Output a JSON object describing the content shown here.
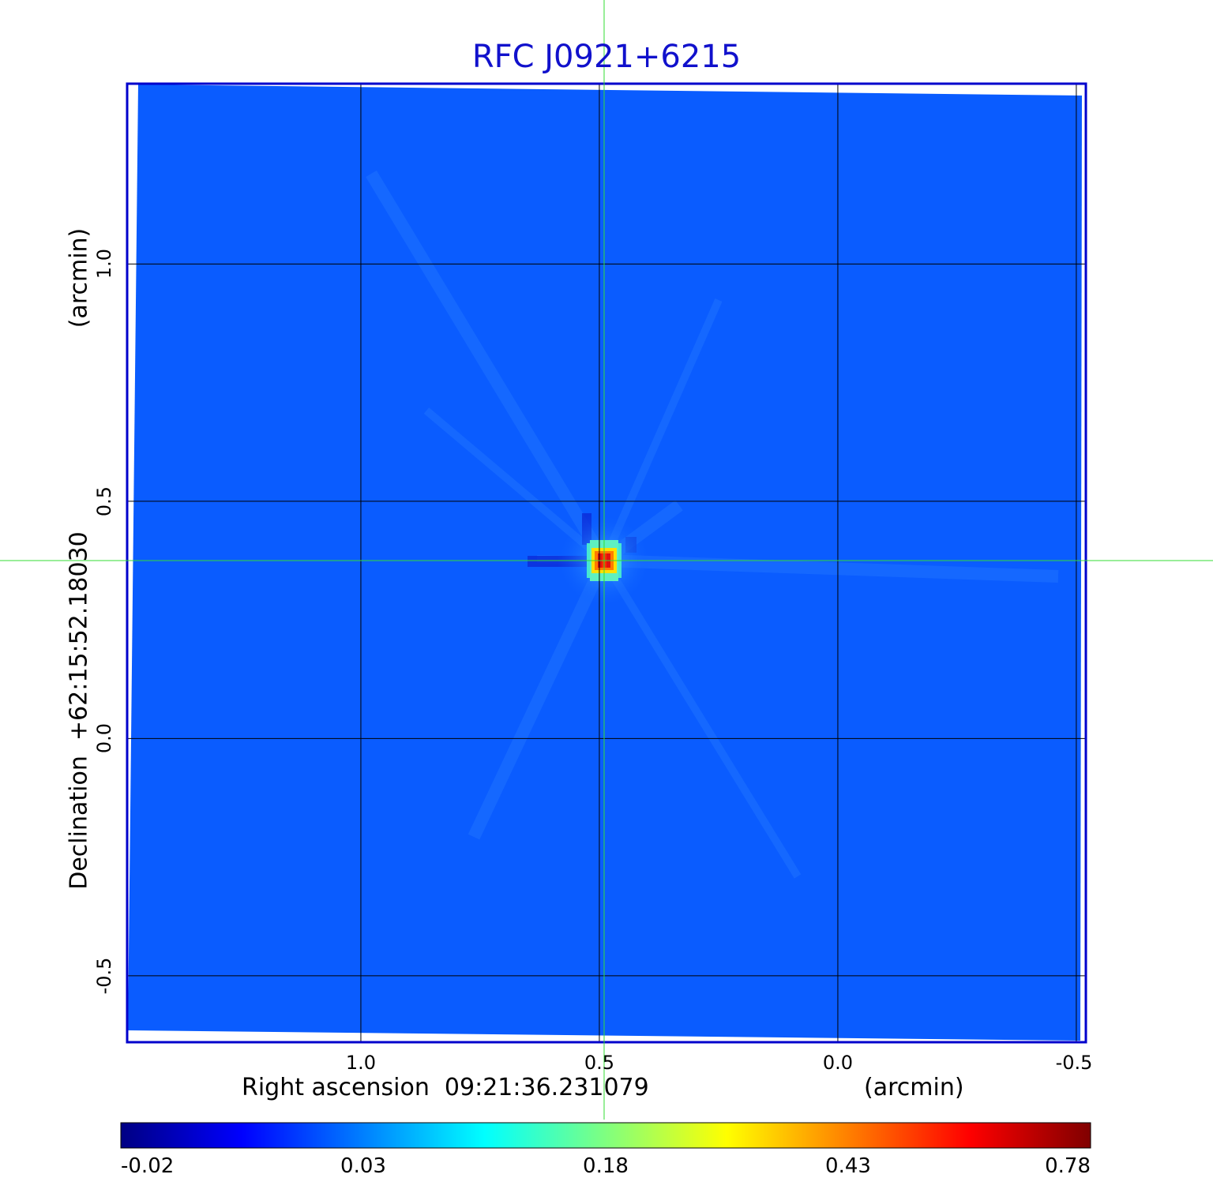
{
  "chart_data": {
    "type": "heatmap",
    "title": "RFC J0921+6215",
    "xlabel": "Right ascension  09:21:36.231079",
    "xunit": "(arcmin)",
    "ylabel": "Declination  +62:15:52.18030",
    "yunit": "(arcmin)",
    "x_ticks": [
      1.0,
      0.5,
      0.0,
      -0.5
    ],
    "x_tick_labels": [
      "1.0",
      "0.5",
      "0.0",
      "-0.5"
    ],
    "y_ticks": [
      1.0,
      0.5,
      0.0,
      -0.5
    ],
    "y_tick_labels": [
      "1.0",
      "0.5",
      "0.0",
      "-0.5"
    ],
    "xlim": [
      1.49,
      -0.52
    ],
    "ylim": [
      -0.64,
      1.38
    ],
    "grid": true,
    "crosshair": {
      "x": 0.49,
      "y": 0.375,
      "color": "#33dd33"
    },
    "source": {
      "x": 0.49,
      "y": 0.375,
      "peak": 0.78
    },
    "colorbar": {
      "orientation": "horizontal",
      "placement": "bottom",
      "colormap": "jet",
      "tick_labels": [
        "-0.02",
        "0.03",
        "0.18",
        "0.43",
        "0.78"
      ],
      "tick_values": [
        -0.02,
        0.03,
        0.18,
        0.43,
        0.78
      ],
      "fractions": [
        0.0,
        0.25,
        0.5,
        0.75,
        1.0
      ]
    }
  }
}
